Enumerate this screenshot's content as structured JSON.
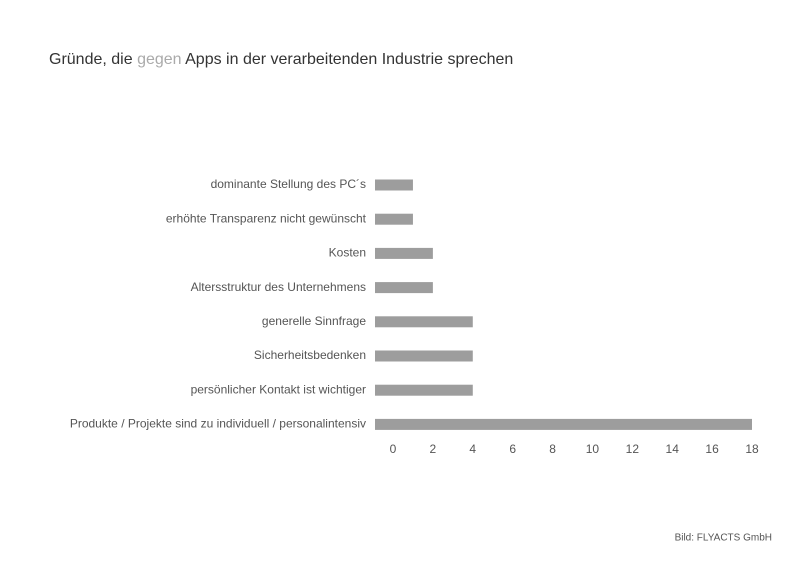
{
  "chart_data": {
    "type": "bar",
    "orientation": "horizontal",
    "title": [
      "Gründe, die ",
      "gegen",
      " Apps in der verarbeitenden Industrie sprechen"
    ],
    "categories": [
      "dominante Stellung des PC´s",
      "erhöhte Transparenz nicht gewünscht",
      "Kosten",
      "Altersstruktur des Unternehmens",
      "generelle Sinnfrage",
      "Sicherheitsbedenken",
      "persönlicher Kontakt ist wichtiger",
      "Produkte / Projekte sind zu individuell / personalintensiv"
    ],
    "values": [
      1,
      1,
      2,
      2,
      4,
      4,
      4,
      18
    ],
    "color": "#9d9d9d",
    "xlim": [
      0,
      18
    ],
    "xticks": [
      0,
      2,
      4,
      6,
      8,
      10,
      12,
      14,
      16,
      18
    ],
    "grid": false,
    "source": "Bild: FLYACTS GmbH"
  }
}
